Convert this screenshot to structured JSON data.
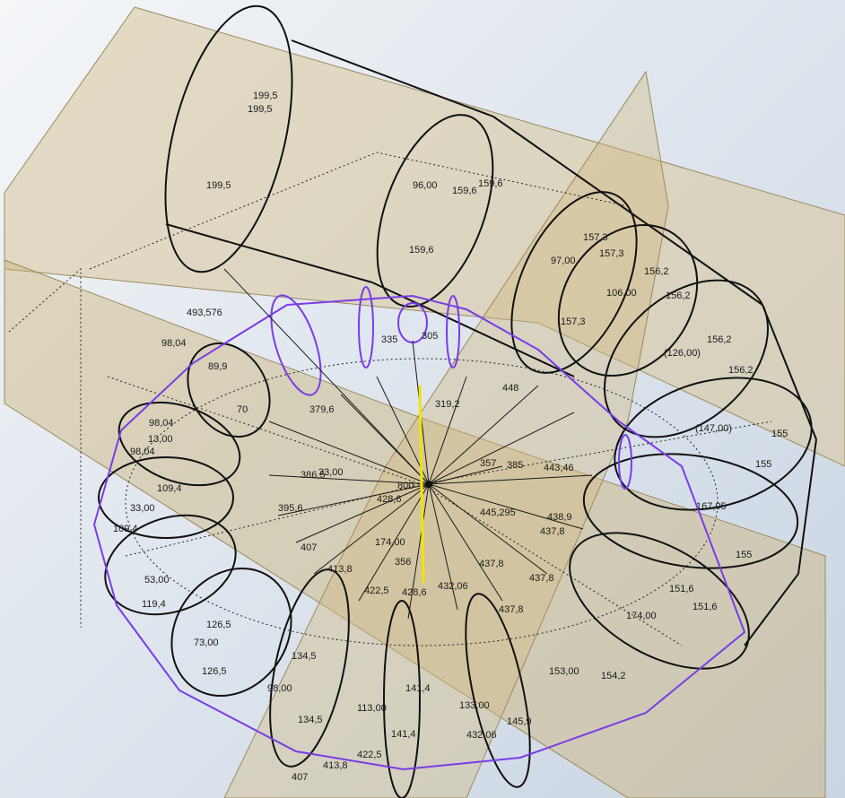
{
  "colors": {
    "background_top": "#f4f6f8",
    "background_bottom": "#c9d5e3",
    "work_plane": "#d8c79a",
    "work_plane_edge": "#9c8a5c",
    "sketch_black": "#111111",
    "sketch_purple": "#7a3ce6",
    "axis_yellow": "#f2e400"
  },
  "dimensions": [
    {
      "id": "d1",
      "text": "199,5"
    },
    {
      "id": "d2",
      "text": "199,5"
    },
    {
      "id": "d3",
      "text": "199,5"
    },
    {
      "id": "d4",
      "text": "96,00"
    },
    {
      "id": "d5",
      "text": "159,6"
    },
    {
      "id": "d6",
      "text": "159,6"
    },
    {
      "id": "d7",
      "text": "159,6"
    },
    {
      "id": "d8",
      "text": "157,3"
    },
    {
      "id": "d9",
      "text": "157,3"
    },
    {
      "id": "d10",
      "text": "97,00"
    },
    {
      "id": "d11",
      "text": "157,3"
    },
    {
      "id": "d12",
      "text": "106,00"
    },
    {
      "id": "d13",
      "text": "156,2"
    },
    {
      "id": "d14",
      "text": "156,2"
    },
    {
      "id": "d15",
      "text": "156,2"
    },
    {
      "id": "d16",
      "text": "(126,00)"
    },
    {
      "id": "d17",
      "text": "156,2"
    },
    {
      "id": "d18",
      "text": "(147,00)"
    },
    {
      "id": "d19",
      "text": "155"
    },
    {
      "id": "d20",
      "text": "155"
    },
    {
      "id": "d21",
      "text": "167,05"
    },
    {
      "id": "d22",
      "text": "155"
    },
    {
      "id": "d23",
      "text": "151,6"
    },
    {
      "id": "d24",
      "text": "174,00"
    },
    {
      "id": "d25",
      "text": "151,6"
    },
    {
      "id": "d26",
      "text": "153,00"
    },
    {
      "id": "d27",
      "text": "154,2"
    },
    {
      "id": "d28",
      "text": "145,9"
    },
    {
      "id": "d29",
      "text": "133,00"
    },
    {
      "id": "d30",
      "text": "432,06"
    },
    {
      "id": "d31",
      "text": "141,4"
    },
    {
      "id": "d32",
      "text": "113,00"
    },
    {
      "id": "d33",
      "text": "141,4"
    },
    {
      "id": "d34",
      "text": "422,5"
    },
    {
      "id": "d35",
      "text": "413,8"
    },
    {
      "id": "d36",
      "text": "407"
    },
    {
      "id": "d37",
      "text": "134,5"
    },
    {
      "id": "d38",
      "text": "98,00"
    },
    {
      "id": "d39",
      "text": "134,5"
    },
    {
      "id": "d40",
      "text": "126,5"
    },
    {
      "id": "d41",
      "text": "73,00"
    },
    {
      "id": "d42",
      "text": "126,5"
    },
    {
      "id": "d43",
      "text": "119,4"
    },
    {
      "id": "d44",
      "text": "53,00"
    },
    {
      "id": "d45",
      "text": "109,4"
    },
    {
      "id": "d46",
      "text": "33,00"
    },
    {
      "id": "d47",
      "text": "109,4"
    },
    {
      "id": "d48",
      "text": "98,04"
    },
    {
      "id": "d49",
      "text": "13,00"
    },
    {
      "id": "d50",
      "text": "98,04"
    },
    {
      "id": "d51",
      "text": "98,04"
    },
    {
      "id": "d52",
      "text": "89,9"
    },
    {
      "id": "d53",
      "text": "70"
    },
    {
      "id": "d54",
      "text": "493,576"
    },
    {
      "id": "d55",
      "text": "379,6"
    },
    {
      "id": "d56",
      "text": "386,5"
    },
    {
      "id": "d57",
      "text": "395,6"
    },
    {
      "id": "d58",
      "text": "407"
    },
    {
      "id": "d59",
      "text": "413,8"
    },
    {
      "id": "d60",
      "text": "422,5"
    },
    {
      "id": "d61",
      "text": "428,6"
    },
    {
      "id": "d62",
      "text": "432,06"
    },
    {
      "id": "d63",
      "text": "437,8"
    },
    {
      "id": "d64",
      "text": "437,8"
    },
    {
      "id": "d65",
      "text": "438,9"
    },
    {
      "id": "d66",
      "text": "437,8"
    },
    {
      "id": "d67",
      "text": "445,295"
    },
    {
      "id": "d68",
      "text": "443,46"
    },
    {
      "id": "d69",
      "text": "385"
    },
    {
      "id": "d70",
      "text": "448"
    },
    {
      "id": "d71",
      "text": "319,2"
    },
    {
      "id": "d72",
      "text": "335"
    },
    {
      "id": "d73",
      "text": "305"
    },
    {
      "id": "d74",
      "text": "356"
    },
    {
      "id": "d75",
      "text": "174,00"
    },
    {
      "id": "d76",
      "text": "800"
    },
    {
      "id": "d77",
      "text": "428,6"
    },
    {
      "id": "d78",
      "text": "33,00"
    },
    {
      "id": "d79",
      "text": "357"
    },
    {
      "id": "d80",
      "text": "437,8"
    }
  ]
}
